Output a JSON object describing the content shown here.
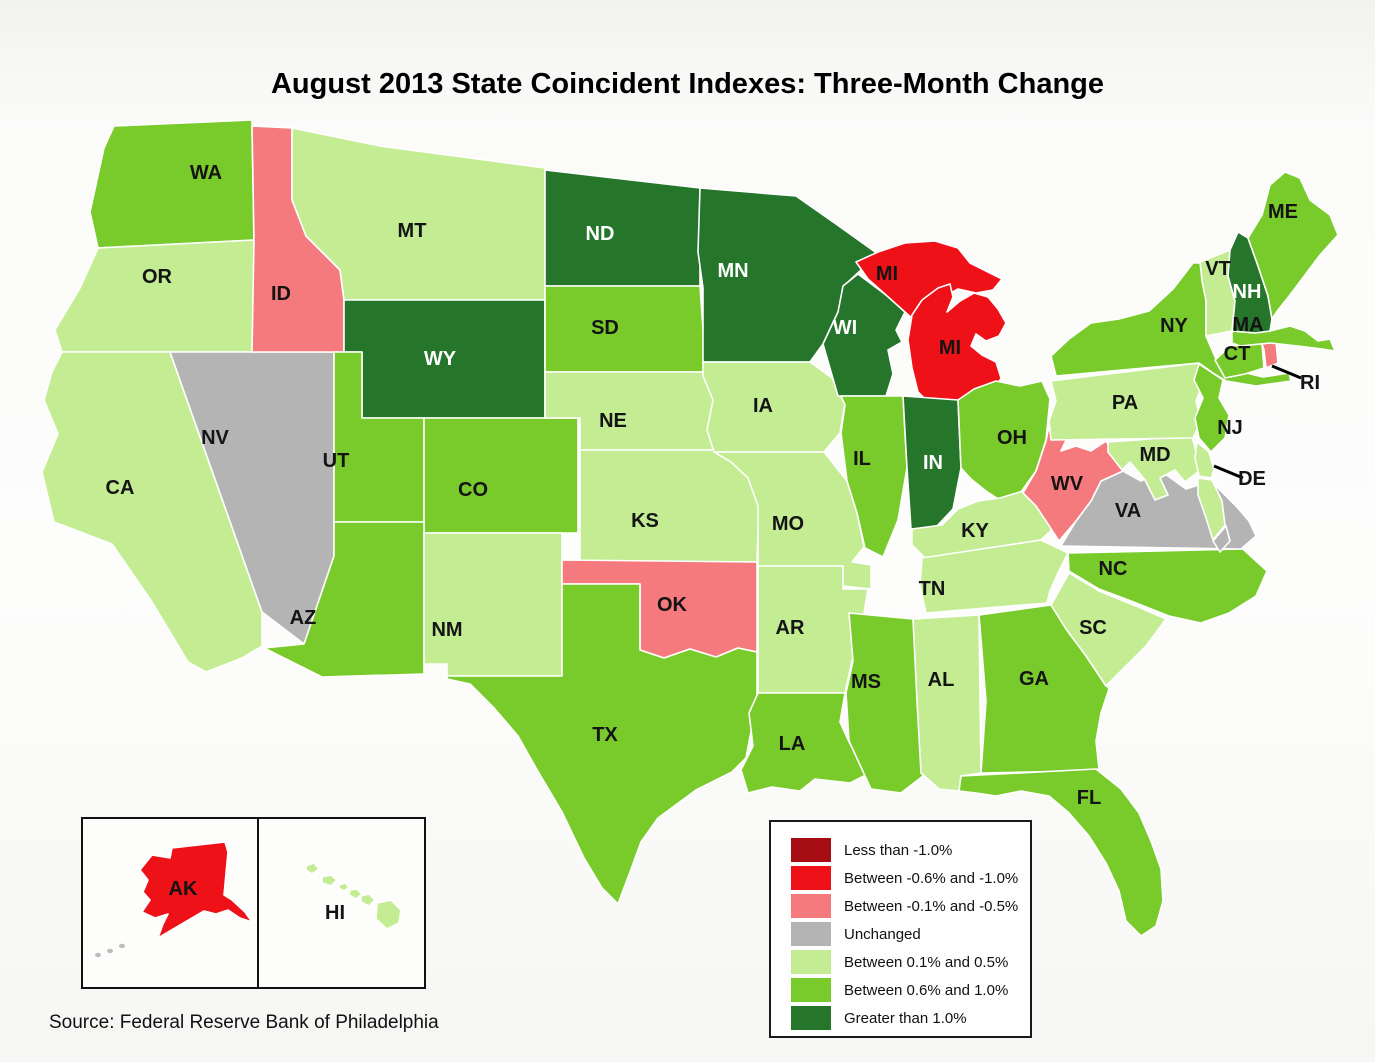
{
  "title": "August 2013 State Coincident Indexes: Three-Month Change",
  "source": "Source: Federal Reserve Bank of Philadelphia",
  "legend": {
    "items": [
      {
        "key": "neg_high",
        "label": "Less than -1.0%",
        "color": "#A60D12"
      },
      {
        "key": "neg_mid",
        "label": "Between -0.6% and -1.0%",
        "color": "#EE1118"
      },
      {
        "key": "neg_low",
        "label": "Between -0.1% and -0.5%",
        "color": "#F47A7E"
      },
      {
        "key": "zero",
        "label": "Unchanged",
        "color": "#B4B4B4"
      },
      {
        "key": "pos_low",
        "label": "Between 0.1% and 0.5%",
        "color": "#C3EC93"
      },
      {
        "key": "pos_mid",
        "label": "Between 0.6% and 1.0%",
        "color": "#79CB2C"
      },
      {
        "key": "pos_high",
        "label": "Greater than 1.0%",
        "color": "#25752B"
      }
    ]
  },
  "map": {
    "border_color": "#ffffff",
    "default_label_color": "#141414",
    "states": [
      {
        "abbr": "WA",
        "category": "pos_mid",
        "labels": [
          [
            206,
            172
          ]
        ]
      },
      {
        "abbr": "OR",
        "category": "pos_low",
        "labels": [
          [
            157,
            276
          ]
        ]
      },
      {
        "abbr": "CA",
        "category": "pos_low",
        "labels": [
          [
            120,
            487
          ]
        ]
      },
      {
        "abbr": "NV",
        "category": "zero",
        "labels": [
          [
            215,
            437
          ]
        ]
      },
      {
        "abbr": "ID",
        "category": "neg_low",
        "labels": [
          [
            281,
            293
          ]
        ]
      },
      {
        "abbr": "MT",
        "category": "pos_low",
        "labels": [
          [
            412,
            230
          ]
        ]
      },
      {
        "abbr": "WY",
        "category": "pos_high",
        "labels": [
          [
            440,
            358
          ]
        ],
        "label_color": "#ffffff"
      },
      {
        "abbr": "UT",
        "category": "pos_mid",
        "labels": [
          [
            336,
            460
          ]
        ]
      },
      {
        "abbr": "CO",
        "category": "pos_mid",
        "labels": [
          [
            473,
            489
          ]
        ]
      },
      {
        "abbr": "AZ",
        "category": "pos_mid",
        "labels": [
          [
            303,
            617
          ]
        ]
      },
      {
        "abbr": "NM",
        "category": "pos_low",
        "labels": [
          [
            447,
            629
          ]
        ]
      },
      {
        "abbr": "ND",
        "category": "pos_high",
        "labels": [
          [
            600,
            233
          ]
        ],
        "label_color": "#ffffff"
      },
      {
        "abbr": "SD",
        "category": "pos_mid",
        "labels": [
          [
            605,
            327
          ]
        ]
      },
      {
        "abbr": "NE",
        "category": "pos_low",
        "labels": [
          [
            613,
            420
          ]
        ]
      },
      {
        "abbr": "KS",
        "category": "pos_low",
        "labels": [
          [
            645,
            520
          ]
        ]
      },
      {
        "abbr": "OK",
        "category": "neg_low",
        "labels": [
          [
            672,
            604
          ]
        ]
      },
      {
        "abbr": "TX",
        "category": "pos_mid",
        "labels": [
          [
            605,
            734
          ]
        ]
      },
      {
        "abbr": "MN",
        "category": "pos_high",
        "labels": [
          [
            733,
            270
          ]
        ],
        "label_color": "#ffffff"
      },
      {
        "abbr": "IA",
        "category": "pos_low",
        "labels": [
          [
            763,
            405
          ]
        ]
      },
      {
        "abbr": "MO",
        "category": "pos_low",
        "labels": [
          [
            788,
            523
          ]
        ]
      },
      {
        "abbr": "AR",
        "category": "pos_low",
        "labels": [
          [
            790,
            627
          ]
        ]
      },
      {
        "abbr": "LA",
        "category": "pos_mid",
        "labels": [
          [
            792,
            743
          ]
        ]
      },
      {
        "abbr": "WI",
        "category": "pos_high",
        "labels": [
          [
            845,
            327
          ]
        ],
        "label_color": "#ffffff"
      },
      {
        "abbr": "IL",
        "category": "pos_mid",
        "labels": [
          [
            862,
            458
          ]
        ]
      },
      {
        "abbr": "MS",
        "category": "pos_mid",
        "labels": [
          [
            866,
            681
          ]
        ]
      },
      {
        "abbr": "MI",
        "category": "neg_mid",
        "labels": [
          [
            887,
            273
          ],
          [
            950,
            347
          ]
        ]
      },
      {
        "abbr": "IN",
        "category": "pos_high",
        "labels": [
          [
            933,
            462
          ]
        ],
        "label_color": "#ffffff"
      },
      {
        "abbr": "OH",
        "category": "pos_mid",
        "labels": [
          [
            1012,
            437
          ]
        ]
      },
      {
        "abbr": "KY",
        "category": "pos_low",
        "labels": [
          [
            975,
            530
          ]
        ]
      },
      {
        "abbr": "TN",
        "category": "pos_low",
        "labels": [
          [
            932,
            588
          ]
        ]
      },
      {
        "abbr": "AL",
        "category": "pos_low",
        "labels": [
          [
            941,
            679
          ]
        ]
      },
      {
        "abbr": "GA",
        "category": "pos_mid",
        "labels": [
          [
            1034,
            678
          ]
        ]
      },
      {
        "abbr": "FL",
        "category": "pos_mid",
        "labels": [
          [
            1089,
            797
          ]
        ]
      },
      {
        "abbr": "SC",
        "category": "pos_low",
        "labels": [
          [
            1093,
            627
          ]
        ]
      },
      {
        "abbr": "NC",
        "category": "pos_mid",
        "labels": [
          [
            1113,
            568
          ]
        ]
      },
      {
        "abbr": "VA",
        "category": "zero",
        "labels": [
          [
            1128,
            510
          ]
        ]
      },
      {
        "abbr": "WV",
        "category": "neg_low",
        "labels": [
          [
            1067,
            483
          ]
        ]
      },
      {
        "abbr": "MD",
        "category": "pos_low",
        "labels": [
          [
            1155,
            454
          ]
        ]
      },
      {
        "abbr": "DE",
        "category": "pos_low",
        "labels": [
          [
            1252,
            478
          ]
        ]
      },
      {
        "abbr": "PA",
        "category": "pos_low",
        "labels": [
          [
            1125,
            402
          ]
        ]
      },
      {
        "abbr": "NJ",
        "category": "pos_mid",
        "labels": [
          [
            1230,
            427
          ]
        ]
      },
      {
        "abbr": "NY",
        "category": "pos_mid",
        "labels": [
          [
            1174,
            325
          ]
        ]
      },
      {
        "abbr": "CT",
        "category": "pos_mid",
        "labels": [
          [
            1237,
            353
          ]
        ]
      },
      {
        "abbr": "RI",
        "category": "neg_low",
        "labels": [
          [
            1310,
            382
          ]
        ]
      },
      {
        "abbr": "MA",
        "category": "pos_mid",
        "labels": [
          [
            1248,
            324
          ]
        ]
      },
      {
        "abbr": "VT",
        "category": "pos_low",
        "labels": [
          [
            1218,
            268
          ]
        ]
      },
      {
        "abbr": "NH",
        "category": "pos_high",
        "labels": [
          [
            1247,
            291
          ]
        ],
        "label_color": "#ffffff"
      },
      {
        "abbr": "ME",
        "category": "pos_mid",
        "labels": [
          [
            1283,
            211
          ]
        ]
      },
      {
        "abbr": "AK",
        "category": "neg_mid",
        "labels": [
          [
            183,
            888
          ]
        ]
      },
      {
        "abbr": "HI",
        "category": "pos_low",
        "labels": [
          [
            335,
            912
          ]
        ]
      }
    ]
  }
}
